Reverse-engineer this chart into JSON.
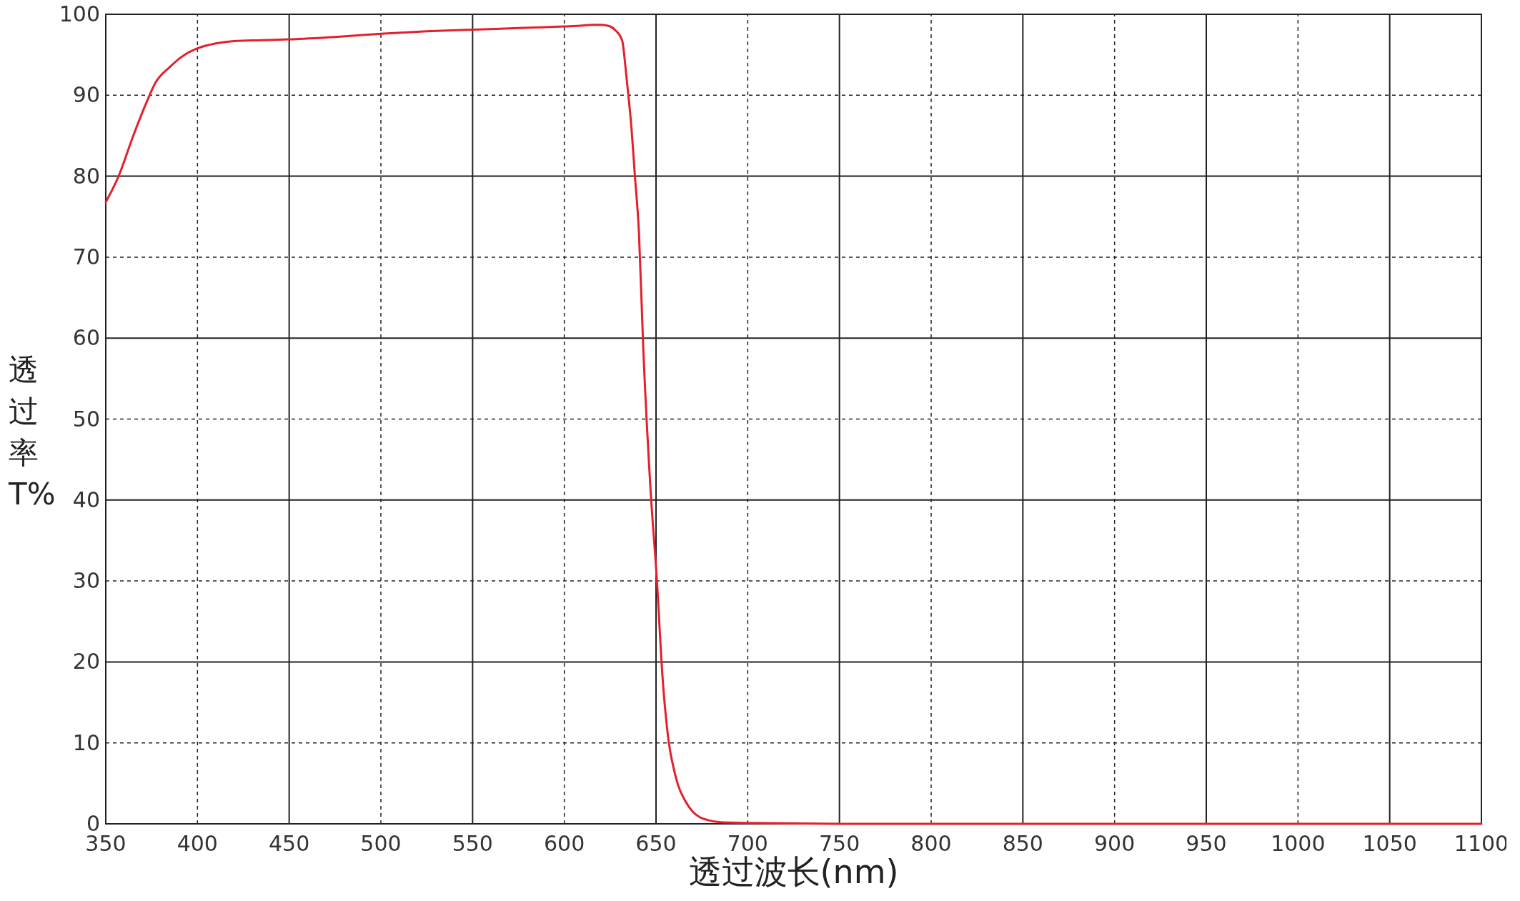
{
  "chart_data": {
    "type": "line",
    "xlabel": "透过波长(nm)",
    "ylabel": "透过率T%",
    "x": [
      350,
      357,
      365,
      372,
      377,
      385,
      393,
      400,
      410,
      420,
      435,
      450,
      475,
      500,
      525,
      550,
      575,
      600,
      610,
      615,
      620,
      625,
      628,
      631.5,
      634,
      636.6,
      638.5,
      640.7,
      643,
      646.9,
      650.5,
      653.5,
      657,
      660,
      662,
      666,
      670,
      674,
      677.7,
      685,
      700,
      750,
      800,
      900,
      1000,
      1100
    ],
    "series": [
      {
        "color": "#e3202b",
        "values": [
          76.8,
          80,
          85,
          89,
          91.5,
          93.5,
          95,
          95.8,
          96.4,
          96.7,
          96.8,
          96.9,
          97.2,
          97.6,
          97.9,
          98.1,
          98.3,
          98.5,
          98.6,
          98.7,
          98.7,
          98.5,
          98,
          96.8,
          92,
          86,
          80,
          73,
          59,
          41.7,
          30,
          18.3,
          10,
          6.5,
          4.8,
          2.8,
          1.5,
          0.8,
          0.5,
          0.2,
          0.1,
          0,
          0,
          0,
          0,
          0
        ]
      }
    ],
    "xlim": [
      350,
      1100
    ],
    "xticks": [
      350,
      400,
      450,
      500,
      550,
      600,
      650,
      700,
      750,
      800,
      850,
      900,
      950,
      1000,
      1050,
      1100
    ],
    "ylim": [
      0,
      100
    ],
    "yticks": [
      0,
      10,
      20,
      30,
      40,
      50,
      60,
      70,
      80,
      90,
      100
    ],
    "grid": true,
    "line_style": "solid",
    "marker": "none"
  }
}
